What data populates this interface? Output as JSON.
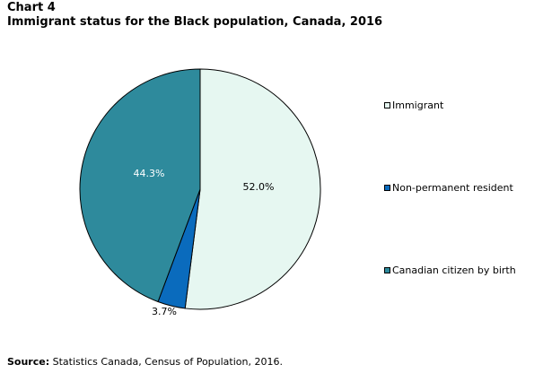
{
  "header": {
    "chart_number": "Chart 4",
    "title": "Immigrant  status for the Black population, Canada, 2016"
  },
  "chart_data": {
    "type": "pie",
    "title": "Immigrant  status for the Black population, Canada, 2016",
    "unit": "percent",
    "legend_placement": "right",
    "slices": [
      {
        "name": "Immigrant",
        "value": 52.0,
        "label": "52.0%",
        "color": "#e6f7f1",
        "label_color": "#000000"
      },
      {
        "name": "Non-permanent resident",
        "value": 3.7,
        "label": "3.7%",
        "color": "#0a6bbd",
        "label_color": "#000000"
      },
      {
        "name": "Canadian citizen by birth",
        "value": 44.3,
        "label": "44.3%",
        "color": "#2e8a9c",
        "label_color": "#ffffff"
      }
    ]
  },
  "legend": {
    "items": [
      {
        "label": "Immigrant"
      },
      {
        "label": "Non-permanent resident"
      },
      {
        "label": "Canadian citizen by birth"
      }
    ]
  },
  "footer": {
    "source_label": "Source:",
    "source_text": " Statistics Canada, Census of Population, 2016."
  }
}
